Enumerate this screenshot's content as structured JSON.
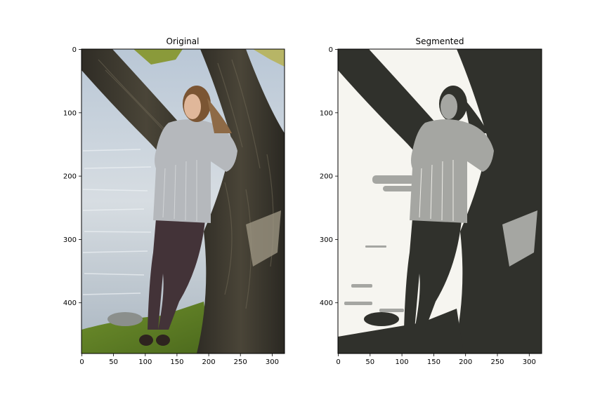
{
  "panels": [
    {
      "title": "Original",
      "x_ticks": [
        "0",
        "50",
        "100",
        "150",
        "200",
        "250",
        "300"
      ],
      "y_ticks": [
        "0",
        "100",
        "200",
        "300",
        "400"
      ]
    },
    {
      "title": "Segmented",
      "x_ticks": [
        "0",
        "50",
        "100",
        "150",
        "200",
        "250",
        "300"
      ],
      "y_ticks": [
        "0",
        "100",
        "200",
        "300",
        "400"
      ]
    }
  ],
  "colors": {
    "segment_light": "#f6f5f0",
    "segment_mid": "#a5a6a2",
    "segment_dark": "#30312c"
  }
}
